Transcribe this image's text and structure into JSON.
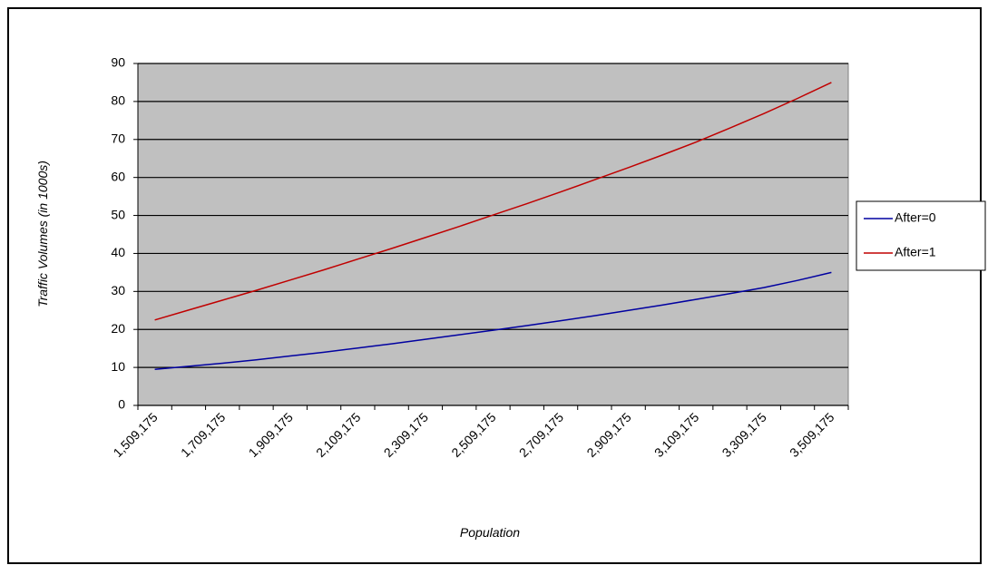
{
  "chart_data": {
    "type": "line",
    "x_label": "Population",
    "y_label": "Traffic Volumes (in 1000s)",
    "categories": [
      "1,509,175",
      null,
      "1,709,175",
      null,
      "1,909,175",
      null,
      "2,109,175",
      null,
      "2,309,175",
      null,
      "2,509,175",
      null,
      "2,709,175",
      null,
      "2,909,175",
      null,
      "3,109,175",
      null,
      "3,309,175",
      null,
      "3,509,175"
    ],
    "series": [
      {
        "name": "After=0",
        "color": "#0000a0",
        "values": [
          9.5,
          10.3,
          11.1,
          12.0,
          13.0,
          14.0,
          15.1,
          16.2,
          17.4,
          18.6,
          19.8,
          21.0,
          22.3,
          23.6,
          25.0,
          26.4,
          27.9,
          29.4,
          31.0,
          32.9,
          35.0
        ]
      },
      {
        "name": "After=1",
        "color": "#c00000",
        "values": [
          22.5,
          25.1,
          27.7,
          30.3,
          33.0,
          35.7,
          38.5,
          41.3,
          44.2,
          47.1,
          50.1,
          53.1,
          56.2,
          59.4,
          62.6,
          65.9,
          69.3,
          73.0,
          76.8,
          80.8,
          85.0
        ]
      }
    ],
    "ylim": [
      0,
      90
    ],
    "yticks": [
      0,
      10,
      20,
      30,
      40,
      50,
      60,
      70,
      80,
      90
    ],
    "grid": true,
    "legend": "right",
    "plot_background": "#c0c0c0"
  }
}
